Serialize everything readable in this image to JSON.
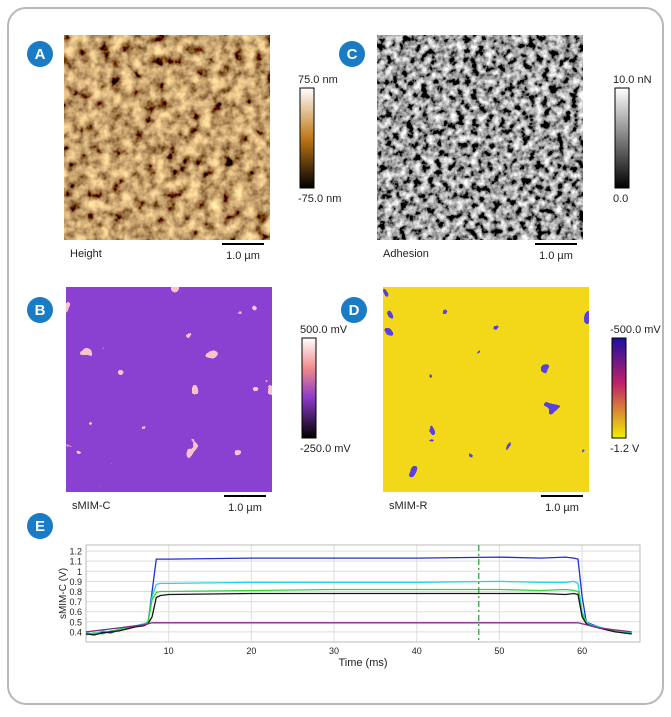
{
  "panels": [
    {
      "badge": "A",
      "label": "Height",
      "scale_bar": "1.0 µm",
      "colorbar": [
        "75.0 nm",
        "-75.0 nm"
      ]
    },
    {
      "badge": "B",
      "label": "sMIM-C",
      "scale_bar": "1.0 µm",
      "colorbar": [
        "500.0 mV",
        "-250.0 mV"
      ]
    },
    {
      "badge": "C",
      "label": "Adhesion",
      "scale_bar": "1.0 µm",
      "colorbar": [
        "10.0 nN",
        "0.0"
      ]
    },
    {
      "badge": "D",
      "label": "sMIM-R",
      "scale_bar": "1.0 µm",
      "colorbar": [
        "-500.0 mV",
        "-1.2 V"
      ]
    },
    {
      "badge": "E"
    }
  ],
  "chart_data": {
    "type": "line",
    "x_label": "Time (ms)",
    "y_label": "sMIM-C (V)",
    "x": [
      0,
      1,
      2,
      3,
      4,
      5,
      6,
      7,
      7.5,
      8,
      8.5,
      9,
      10,
      20,
      30,
      40,
      50,
      55,
      58,
      59,
      59.5,
      60,
      60.5,
      61,
      62,
      63,
      64,
      65,
      66
    ],
    "series": [
      {
        "name": "blue",
        "color": "#2030c8",
        "values": [
          0.38,
          0.37,
          0.4,
          0.39,
          0.42,
          0.43,
          0.45,
          0.47,
          0.49,
          0.8,
          1.12,
          1.12,
          1.12,
          1.13,
          1.13,
          1.13,
          1.14,
          1.13,
          1.14,
          1.13,
          1.12,
          0.75,
          0.5,
          0.48,
          0.45,
          0.42,
          0.41,
          0.39,
          0.38
        ]
      },
      {
        "name": "cyan",
        "color": "#22d4e6",
        "values": [
          0.39,
          0.38,
          0.41,
          0.4,
          0.43,
          0.44,
          0.46,
          0.48,
          0.5,
          0.75,
          0.87,
          0.88,
          0.88,
          0.89,
          0.89,
          0.89,
          0.9,
          0.89,
          0.89,
          0.9,
          0.88,
          0.6,
          0.5,
          0.47,
          0.45,
          0.43,
          0.41,
          0.4,
          0.39
        ]
      },
      {
        "name": "green",
        "color": "#30d830",
        "values": [
          0.37,
          0.39,
          0.38,
          0.41,
          0.42,
          0.44,
          0.45,
          0.47,
          0.49,
          0.72,
          0.79,
          0.8,
          0.8,
          0.81,
          0.82,
          0.82,
          0.82,
          0.81,
          0.82,
          0.81,
          0.8,
          0.58,
          0.49,
          0.46,
          0.44,
          0.42,
          0.41,
          0.39,
          0.38
        ]
      },
      {
        "name": "black",
        "color": "#151515",
        "values": [
          0.38,
          0.37,
          0.39,
          0.4,
          0.41,
          0.43,
          0.45,
          0.46,
          0.48,
          0.55,
          0.74,
          0.76,
          0.77,
          0.78,
          0.78,
          0.78,
          0.78,
          0.78,
          0.77,
          0.78,
          0.77,
          0.55,
          0.48,
          0.46,
          0.44,
          0.42,
          0.4,
          0.39,
          0.38
        ]
      },
      {
        "name": "purple",
        "color": "#8a2a8a",
        "values": [
          0.4,
          0.41,
          0.42,
          0.43,
          0.44,
          0.45,
          0.46,
          0.47,
          0.48,
          0.49,
          0.49,
          0.49,
          0.49,
          0.49,
          0.49,
          0.49,
          0.49,
          0.49,
          0.49,
          0.49,
          0.49,
          0.48,
          0.47,
          0.46,
          0.44,
          0.43,
          0.42,
          0.41,
          0.4
        ]
      }
    ],
    "vline": {
      "x": 47.5,
      "color": "#2a9a3a"
    },
    "xlim": [
      0,
      67
    ],
    "ylim": [
      0.3,
      1.26
    ],
    "xticks": [
      10,
      20,
      30,
      40,
      50,
      60
    ],
    "yticks": [
      0.4,
      0.5,
      0.6,
      0.7,
      0.8,
      0.9,
      1,
      1.1,
      1.2
    ],
    "grid": true
  }
}
